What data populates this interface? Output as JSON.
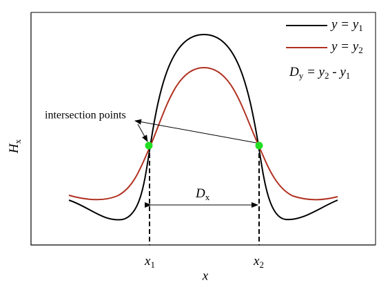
{
  "legend": [
    {
      "parts": [
        "y = y",
        "1"
      ]
    },
    {
      "parts": [
        "y = y",
        "2"
      ]
    }
  ],
  "difference_label": {
    "parts": [
      "D",
      "y",
      " = y",
      "2",
      " - y",
      "1"
    ]
  },
  "annotation": "intersection points",
  "y_axis_label": {
    "parts": [
      "H",
      "x"
    ]
  },
  "x_axis_label": "x",
  "x_marks": [
    {
      "parts": [
        "x",
        "1"
      ]
    },
    {
      "parts": [
        "x",
        "2"
      ]
    }
  ],
  "gap_label": {
    "parts": [
      "D",
      "x"
    ]
  }
}
